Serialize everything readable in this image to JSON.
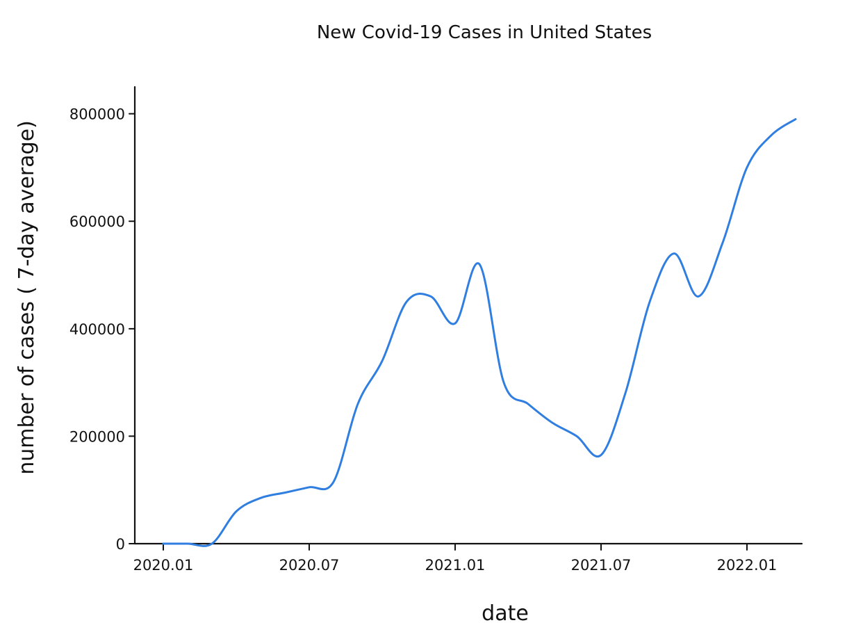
{
  "chart_data": {
    "type": "line",
    "title": "New Covid-19 Cases in United States",
    "xlabel": "date",
    "ylabel": "number of cases ( 7-day average)",
    "x_tick_labels": [
      "2020.01",
      "2020.07",
      "2021.01",
      "2021.07",
      "2022.01"
    ],
    "y_tick_labels": [
      "0",
      "200000",
      "400000",
      "600000",
      "800000"
    ],
    "y_ticks": [
      0,
      200000,
      400000,
      600000,
      800000
    ],
    "ylim": [
      0,
      850000
    ],
    "xlim": [
      "2019-12",
      "2022-04"
    ],
    "grid": false,
    "line_color": "#2f7ee0",
    "series": [
      {
        "x": [
          "2020-01",
          "2020-02",
          "2020-03",
          "2020-04",
          "2020-05",
          "2020-06",
          "2020-07",
          "2020-08",
          "2020-09",
          "2020-10",
          "2020-11",
          "2020-12",
          "2021-01",
          "2021-02",
          "2021-03",
          "2021-04",
          "2021-05",
          "2021-06",
          "2021-07",
          "2021-08",
          "2021-09",
          "2021-10",
          "2021-11",
          "2021-12",
          "2022-01",
          "2022-02",
          "2022-03"
        ],
        "values": [
          0,
          0,
          0,
          60000,
          85000,
          95000,
          105000,
          115000,
          260000,
          340000,
          450000,
          460000,
          410000,
          520000,
          300000,
          260000,
          225000,
          200000,
          165000,
          280000,
          450000,
          540000,
          460000,
          560000,
          700000,
          760000,
          790000
        ]
      }
    ]
  }
}
